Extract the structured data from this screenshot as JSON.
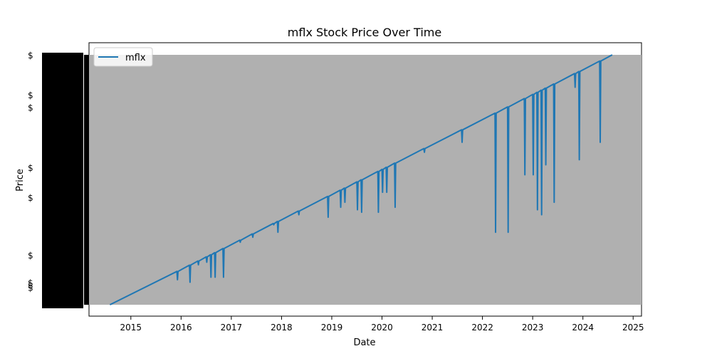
{
  "chart_data": {
    "type": "line",
    "title": "mflx Stock Price Over Time",
    "xlabel": "Date",
    "ylabel": "Price",
    "x_ticks": [
      "2015",
      "2016",
      "2017",
      "2018",
      "2019",
      "2020",
      "2021",
      "2022",
      "2023",
      "2024",
      "2025"
    ],
    "xlim": [
      "2014-03",
      "2025-03"
    ],
    "ylim": [
      0,
      100
    ],
    "y_axis_note": "overlapping categorical price labels",
    "legend": {
      "position": "top-left",
      "entries": [
        "mflx"
      ]
    },
    "colors": {
      "series": "#1f77b4",
      "plot_bg": "#b0b0b0"
    },
    "series": [
      {
        "name": "mflx",
        "start": {
          "x": "2014-08",
          "y": 0
        },
        "end": {
          "x": "2024-08",
          "y": 100
        },
        "dips": [
          {
            "x": "2015-12",
            "y": 10
          },
          {
            "x": "2016-03",
            "y": 9
          },
          {
            "x": "2016-05",
            "y": 16
          },
          {
            "x": "2016-07",
            "y": 17
          },
          {
            "x": "2016-08",
            "y": 11
          },
          {
            "x": "2016-09",
            "y": 11
          },
          {
            "x": "2016-11",
            "y": 11
          },
          {
            "x": "2017-03",
            "y": 25
          },
          {
            "x": "2017-06",
            "y": 27
          },
          {
            "x": "2017-11",
            "y": 32
          },
          {
            "x": "2017-12",
            "y": 29
          },
          {
            "x": "2018-05",
            "y": 36
          },
          {
            "x": "2018-12",
            "y": 35
          },
          {
            "x": "2019-03",
            "y": 39
          },
          {
            "x": "2019-04",
            "y": 41
          },
          {
            "x": "2019-07",
            "y": 38
          },
          {
            "x": "2019-08",
            "y": 37
          },
          {
            "x": "2019-12",
            "y": 37
          },
          {
            "x": "2020-01",
            "y": 45
          },
          {
            "x": "2020-02",
            "y": 45
          },
          {
            "x": "2020-04",
            "y": 39
          },
          {
            "x": "2020-11",
            "y": 61
          },
          {
            "x": "2021-08",
            "y": 65
          },
          {
            "x": "2022-04",
            "y": 29
          },
          {
            "x": "2022-07",
            "y": 29
          },
          {
            "x": "2022-11",
            "y": 52
          },
          {
            "x": "2023-01",
            "y": 52
          },
          {
            "x": "2023-02",
            "y": 38
          },
          {
            "x": "2023-03",
            "y": 36
          },
          {
            "x": "2023-04",
            "y": 56
          },
          {
            "x": "2023-06",
            "y": 41
          },
          {
            "x": "2023-11",
            "y": 87
          },
          {
            "x": "2023-12",
            "y": 58
          },
          {
            "x": "2024-05",
            "y": 65
          },
          {
            "x": "2024-05",
            "y": 73
          }
        ]
      }
    ]
  }
}
